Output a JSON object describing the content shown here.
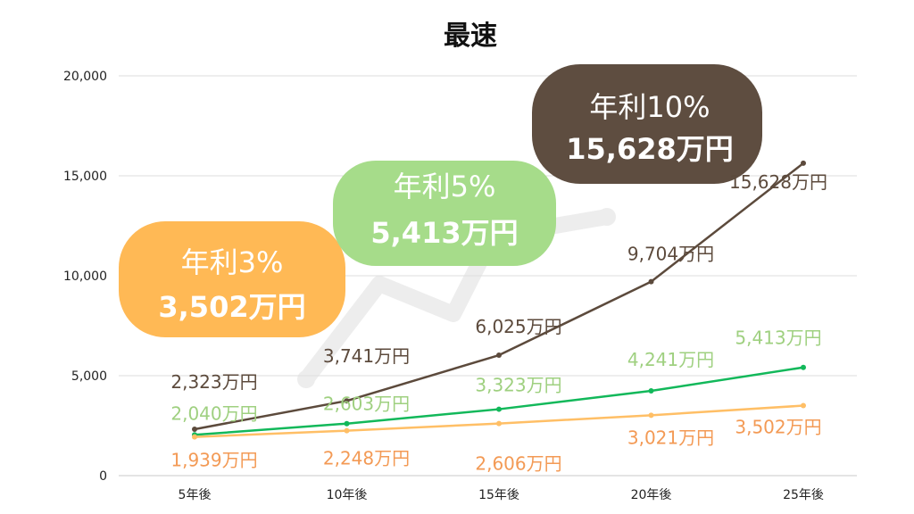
{
  "chart_data": {
    "type": "line",
    "title": "最速",
    "categories": [
      "5年後",
      "10年後",
      "15年後",
      "20年後",
      "25年後"
    ],
    "ylim": [
      0,
      20000
    ],
    "yticks": [
      "0",
      "5,000",
      "10,000",
      "15,000",
      "20,000"
    ],
    "grid": true,
    "series": [
      {
        "key": "r10",
        "values": [
          2323,
          3741,
          6025,
          9704,
          15628
        ],
        "labels": [
          "2,323万円",
          "3,741万円",
          "6,025万円",
          "9,704万円",
          "15,628万円"
        ],
        "color": "#5c4a3c",
        "label_color": "#5c4a3c"
      },
      {
        "key": "r5",
        "values": [
          2040,
          2603,
          3323,
          4241,
          5413
        ],
        "labels": [
          "2,040万円",
          "2,603万円",
          "3,323万円",
          "4,241万円",
          "5,413万円"
        ],
        "color": "#12b85a",
        "label_color": "#9fd080"
      },
      {
        "key": "r3",
        "values": [
          1939,
          2248,
          2606,
          3021,
          3502
        ],
        "labels": [
          "1,939万円",
          "2,248万円",
          "2,606万円",
          "3,021万円",
          "3,502万円"
        ],
        "color": "#ffbf66",
        "label_color": "#f39a55"
      }
    ],
    "callouts": [
      {
        "rate": "年利3%",
        "amount": "3,502万円",
        "color": "#ffb955"
      },
      {
        "rate": "年利5%",
        "amount": "5,413万円",
        "color": "#a6dc8a"
      },
      {
        "rate": "年利10%",
        "amount": "15,628万円",
        "color": "#5e4d40"
      }
    ]
  }
}
